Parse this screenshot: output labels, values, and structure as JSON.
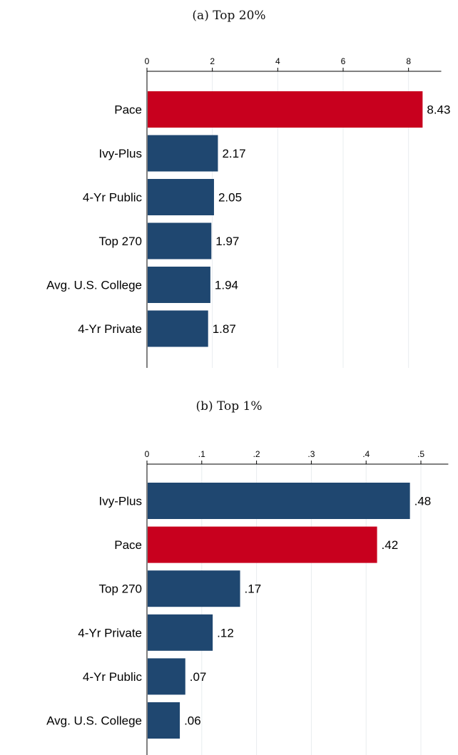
{
  "chart_data": [
    {
      "type": "bar",
      "orientation": "horizontal",
      "title": "(a) Top 20%",
      "categories": [
        "Pace",
        "Ivy-Plus",
        "4-Yr Public",
        "Top 270",
        "Avg. U.S. College",
        "4-Yr Private"
      ],
      "values": [
        8.43,
        2.17,
        2.05,
        1.97,
        1.94,
        1.87
      ],
      "data_labels": [
        "8.43",
        "2.17",
        "2.05",
        "1.97",
        "1.94",
        "1.87"
      ],
      "colors": [
        "#c8001e",
        "#1f4770",
        "#1f4770",
        "#1f4770",
        "#1f4770",
        "#1f4770"
      ],
      "xticks": [
        0,
        2,
        4,
        6,
        8
      ],
      "xtick_labels": [
        "0",
        "2",
        "4",
        "6",
        "8"
      ],
      "xlim": [
        0,
        9
      ],
      "axis_position": "top",
      "grid": true,
      "xlabel": "",
      "ylabel": ""
    },
    {
      "type": "bar",
      "orientation": "horizontal",
      "title": "(b) Top 1%",
      "categories": [
        "Ivy-Plus",
        "Pace",
        "Top 270",
        "4-Yr Private",
        "4-Yr Public",
        "Avg. U.S. College"
      ],
      "values": [
        0.48,
        0.42,
        0.17,
        0.12,
        0.07,
        0.06
      ],
      "data_labels": [
        ".48",
        ".42",
        ".17",
        ".12",
        ".07",
        ".06"
      ],
      "colors": [
        "#1f4770",
        "#c8001e",
        "#1f4770",
        "#1f4770",
        "#1f4770",
        "#1f4770"
      ],
      "xticks": [
        0,
        0.1,
        0.2,
        0.3,
        0.4,
        0.5
      ],
      "xtick_labels": [
        "0",
        ".1",
        ".2",
        ".3",
        ".4",
        ".5"
      ],
      "xlim": [
        0,
        0.55
      ],
      "axis_position": "top",
      "grid": true,
      "xlabel": "",
      "ylabel": ""
    }
  ]
}
